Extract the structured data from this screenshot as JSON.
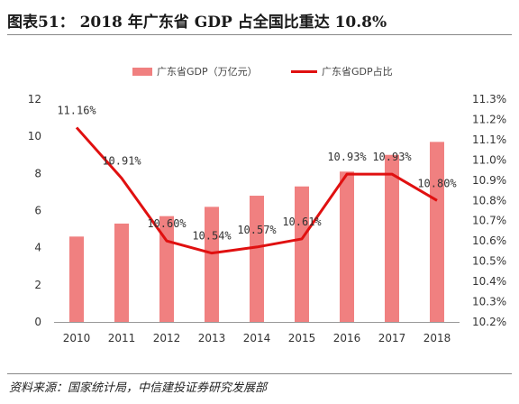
{
  "header": {
    "title": "图表51：  2018 年广东省 GDP 占全国比重达 10.8%"
  },
  "footer": {
    "source": "资料来源：国家统计局，中信建投证券研究发展部"
  },
  "colors": {
    "bar": "#f08080",
    "line": "#e01010",
    "axis": "#999999"
  },
  "chart_data": {
    "type": "bar",
    "categories": [
      "2010",
      "2011",
      "2012",
      "2013",
      "2014",
      "2015",
      "2016",
      "2017",
      "2018"
    ],
    "series": [
      {
        "name": "广东省GDP（万亿元）",
        "type": "bar",
        "axis": "left",
        "values": [
          4.6,
          5.3,
          5.7,
          6.2,
          6.8,
          7.3,
          8.1,
          9.0,
          9.7
        ]
      },
      {
        "name": "广东省GDP占比",
        "type": "line",
        "axis": "right",
        "values": [
          11.16,
          10.91,
          10.6,
          10.54,
          10.57,
          10.61,
          10.93,
          10.93,
          10.8
        ],
        "labels": [
          "11.16%",
          "10.91%",
          "10.60%",
          "10.54%",
          "10.57%",
          "10.61%",
          "10.93%",
          "10.93%",
          "10.80%"
        ]
      }
    ],
    "left_axis": {
      "ylim": [
        0,
        12
      ],
      "ticks": [
        0,
        2,
        4,
        6,
        8,
        10,
        12
      ],
      "tick_labels": [
        "0",
        "2",
        "4",
        "6",
        "8",
        "10",
        "12"
      ]
    },
    "right_axis": {
      "ylim": [
        10.2,
        11.3
      ],
      "ticks": [
        10.2,
        10.3,
        10.4,
        10.5,
        10.6,
        10.7,
        10.8,
        10.9,
        11.0,
        11.1,
        11.2,
        11.3
      ],
      "tick_labels": [
        "10.2%",
        "10.3%",
        "10.4%",
        "10.5%",
        "10.6%",
        "10.7%",
        "10.8%",
        "10.9%",
        "11.0%",
        "11.1%",
        "11.2%",
        "11.3%"
      ]
    },
    "legend": "top-center",
    "grid": false
  }
}
